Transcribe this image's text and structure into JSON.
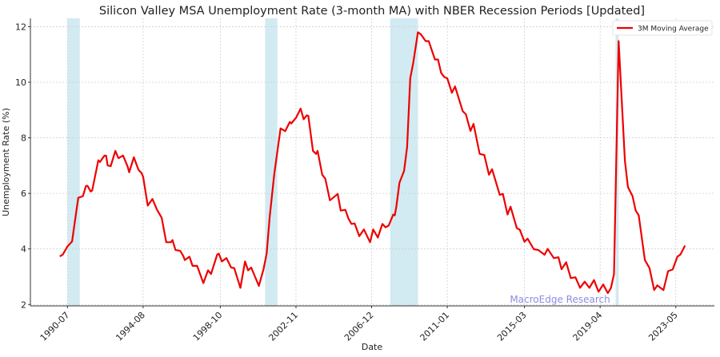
{
  "chart_data": {
    "type": "line",
    "title": "Silicon Valley MSA Unemployment Rate (3-month MA) with NBER Recession Periods [Updated]",
    "xlabel": "Date",
    "ylabel": "Unemployment Rate (%)",
    "xlim": [
      "1988-07",
      "2025-06"
    ],
    "ylim": [
      1.95,
      12.3
    ],
    "yticks": [
      2,
      4,
      6,
      8,
      10,
      12
    ],
    "xticks": [
      "1990-07",
      "1994-08",
      "1998-10",
      "2002-11",
      "2006-12",
      "2011-01",
      "2015-03",
      "2019-04",
      "2023-05"
    ],
    "grid": true,
    "legend_position": "top-right",
    "watermark": "MacroEdge Research",
    "colors": {
      "line": "#ee0000",
      "recession": "#add8e6",
      "watermark": "#8c8ce6"
    },
    "recessions": [
      {
        "start": "1990-07",
        "end": "1991-03"
      },
      {
        "start": "2001-03",
        "end": "2001-11"
      },
      {
        "start": "2007-12",
        "end": "2009-06"
      },
      {
        "start": "2020-02",
        "end": "2020-04"
      }
    ],
    "series": [
      {
        "name": "3M Moving Average",
        "points": [
          [
            "1990-02",
            3.73
          ],
          [
            "1990-04",
            3.8
          ],
          [
            "1990-07",
            4.09
          ],
          [
            "1990-10",
            4.27
          ],
          [
            "1990-11",
            4.66
          ],
          [
            "1991-02",
            5.84
          ],
          [
            "1991-05",
            5.9
          ],
          [
            "1991-07",
            6.27
          ],
          [
            "1991-08",
            6.27
          ],
          [
            "1991-10",
            6.07
          ],
          [
            "1991-11",
            6.1
          ],
          [
            "1992-03",
            7.19
          ],
          [
            "1992-04",
            7.13
          ],
          [
            "1992-07",
            7.36
          ],
          [
            "1992-08",
            7.36
          ],
          [
            "1992-09",
            7.01
          ],
          [
            "1992-11",
            6.98
          ],
          [
            "1993-02",
            7.53
          ],
          [
            "1993-04",
            7.27
          ],
          [
            "1993-07",
            7.36
          ],
          [
            "1993-10",
            6.96
          ],
          [
            "1993-11",
            6.76
          ],
          [
            "1994-02",
            7.3
          ],
          [
            "1994-05",
            6.85
          ],
          [
            "1994-07",
            6.73
          ],
          [
            "1994-08",
            6.6
          ],
          [
            "1994-11",
            5.56
          ],
          [
            "1995-02",
            5.8
          ],
          [
            "1995-05",
            5.41
          ],
          [
            "1995-08",
            5.12
          ],
          [
            "1995-11",
            4.24
          ],
          [
            "1996-02",
            4.24
          ],
          [
            "1996-03",
            4.32
          ],
          [
            "1996-05",
            3.96
          ],
          [
            "1996-08",
            3.93
          ],
          [
            "1996-10",
            3.75
          ],
          [
            "1996-11",
            3.6
          ],
          [
            "1997-02",
            3.72
          ],
          [
            "1997-04",
            3.39
          ],
          [
            "1997-07",
            3.39
          ],
          [
            "1997-11",
            2.77
          ],
          [
            "1998-02",
            3.23
          ],
          [
            "1998-04",
            3.1
          ],
          [
            "1998-08",
            3.8
          ],
          [
            "1998-09",
            3.83
          ],
          [
            "1998-11",
            3.55
          ],
          [
            "1999-02",
            3.67
          ],
          [
            "1999-05",
            3.33
          ],
          [
            "1999-07",
            3.31
          ],
          [
            "1999-11",
            2.6
          ],
          [
            "2000-02",
            3.55
          ],
          [
            "2000-04",
            3.23
          ],
          [
            "2000-06",
            3.33
          ],
          [
            "2000-11",
            2.67
          ],
          [
            "2000-12",
            2.88
          ],
          [
            "2001-02",
            3.27
          ],
          [
            "2001-04",
            3.83
          ],
          [
            "2001-06",
            5.18
          ],
          [
            "2001-09",
            6.71
          ],
          [
            "2002-01",
            8.34
          ],
          [
            "2002-04",
            8.24
          ],
          [
            "2002-07",
            8.57
          ],
          [
            "2002-08",
            8.52
          ],
          [
            "2002-11",
            8.72
          ],
          [
            "2003-02",
            9.05
          ],
          [
            "2003-04",
            8.67
          ],
          [
            "2003-06",
            8.81
          ],
          [
            "2003-07",
            8.79
          ],
          [
            "2003-10",
            7.53
          ],
          [
            "2003-12",
            7.42
          ],
          [
            "2004-01",
            7.53
          ],
          [
            "2004-04",
            6.67
          ],
          [
            "2004-06",
            6.53
          ],
          [
            "2004-09",
            5.75
          ],
          [
            "2004-11",
            5.84
          ],
          [
            "2005-02",
            5.98
          ],
          [
            "2005-04",
            5.38
          ],
          [
            "2005-07",
            5.41
          ],
          [
            "2005-09",
            5.09
          ],
          [
            "2005-11",
            4.9
          ],
          [
            "2006-01",
            4.92
          ],
          [
            "2006-04",
            4.46
          ],
          [
            "2006-07",
            4.7
          ],
          [
            "2006-11",
            4.24
          ],
          [
            "2007-01",
            4.7
          ],
          [
            "2007-04",
            4.41
          ],
          [
            "2007-07",
            4.9
          ],
          [
            "2007-09",
            4.78
          ],
          [
            "2007-11",
            4.84
          ],
          [
            "2008-02",
            5.24
          ],
          [
            "2008-03",
            5.21
          ],
          [
            "2008-04",
            5.52
          ],
          [
            "2008-06",
            6.38
          ],
          [
            "2008-09",
            6.81
          ],
          [
            "2008-11",
            7.67
          ],
          [
            "2009-01",
            10.14
          ],
          [
            "2009-03",
            10.71
          ],
          [
            "2009-06",
            11.8
          ],
          [
            "2009-08",
            11.72
          ],
          [
            "2009-11",
            11.48
          ],
          [
            "2010-01",
            11.48
          ],
          [
            "2010-05",
            10.82
          ],
          [
            "2010-07",
            10.82
          ],
          [
            "2010-09",
            10.34
          ],
          [
            "2010-11",
            10.19
          ],
          [
            "2011-01",
            10.14
          ],
          [
            "2011-04",
            9.62
          ],
          [
            "2011-06",
            9.85
          ],
          [
            "2011-11",
            8.96
          ],
          [
            "2012-01",
            8.85
          ],
          [
            "2012-04",
            8.25
          ],
          [
            "2012-06",
            8.5
          ],
          [
            "2012-10",
            7.42
          ],
          [
            "2013-01",
            7.38
          ],
          [
            "2013-04",
            6.67
          ],
          [
            "2013-06",
            6.87
          ],
          [
            "2013-11",
            5.95
          ],
          [
            "2014-01",
            5.98
          ],
          [
            "2014-04",
            5.24
          ],
          [
            "2014-06",
            5.52
          ],
          [
            "2014-10",
            4.75
          ],
          [
            "2014-12",
            4.69
          ],
          [
            "2015-03",
            4.26
          ],
          [
            "2015-05",
            4.37
          ],
          [
            "2015-09",
            3.99
          ],
          [
            "2015-12",
            3.96
          ],
          [
            "2016-04",
            3.79
          ],
          [
            "2016-06",
            4.0
          ],
          [
            "2016-10",
            3.67
          ],
          [
            "2017-01",
            3.7
          ],
          [
            "2017-03",
            3.27
          ],
          [
            "2017-06",
            3.52
          ],
          [
            "2017-09",
            2.95
          ],
          [
            "2017-12",
            2.98
          ],
          [
            "2018-03",
            2.6
          ],
          [
            "2018-06",
            2.82
          ],
          [
            "2018-09",
            2.6
          ],
          [
            "2018-12",
            2.88
          ],
          [
            "2019-03",
            2.46
          ],
          [
            "2019-06",
            2.72
          ],
          [
            "2019-09",
            2.41
          ],
          [
            "2019-11",
            2.6
          ],
          [
            "2020-01",
            3.09
          ],
          [
            "2020-04",
            11.48
          ],
          [
            "2020-08",
            7.19
          ],
          [
            "2020-10",
            6.23
          ],
          [
            "2021-01",
            5.9
          ],
          [
            "2021-03",
            5.38
          ],
          [
            "2021-05",
            5.21
          ],
          [
            "2021-09",
            3.6
          ],
          [
            "2021-12",
            3.31
          ],
          [
            "2022-03",
            2.52
          ],
          [
            "2022-05",
            2.69
          ],
          [
            "2022-09",
            2.52
          ],
          [
            "2022-12",
            3.2
          ],
          [
            "2023-03",
            3.26
          ],
          [
            "2023-06",
            3.72
          ],
          [
            "2023-08",
            3.8
          ],
          [
            "2023-11",
            4.12
          ]
        ]
      }
    ]
  }
}
